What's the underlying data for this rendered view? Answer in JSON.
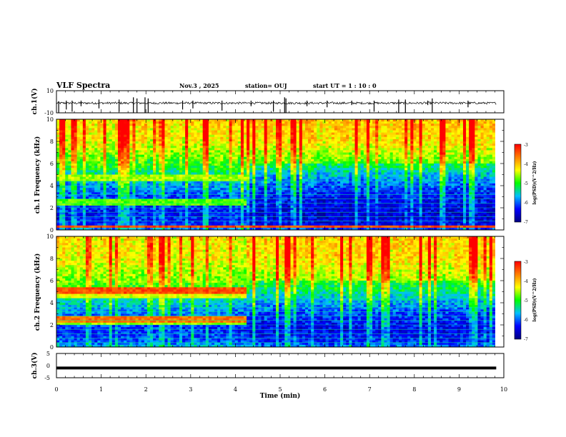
{
  "header": {
    "title": "VLF Spectra",
    "date": "Nov.3  , 2025",
    "station": "station= OUJ",
    "start": "start  UT =   1 : 10 : 0"
  },
  "chart_data": [
    {
      "type": "line",
      "panel": "ch1-waveform",
      "ylabel": "ch.1(V)",
      "ylim": [
        -10,
        10
      ],
      "yticks": [
        "10",
        "-10"
      ],
      "xlim": [
        0,
        10
      ],
      "x_extent": [
        0,
        9.83
      ],
      "baseline": -1.2,
      "noise_amplitude": 1.0,
      "spikes": [
        {
          "x": 0.05,
          "min": -10,
          "max": 0.5
        },
        {
          "x": 0.22,
          "min": -7,
          "max": 1
        },
        {
          "x": 0.35,
          "min": -9,
          "max": 1
        },
        {
          "x": 0.55,
          "min": -4,
          "max": 1
        },
        {
          "x": 0.95,
          "min": -6,
          "max": 2
        },
        {
          "x": 1.4,
          "min": -9,
          "max": 2
        },
        {
          "x": 1.72,
          "min": -10,
          "max": 4
        },
        {
          "x": 1.8,
          "min": -10,
          "max": 3
        },
        {
          "x": 1.98,
          "min": -10,
          "max": 4
        },
        {
          "x": 2.05,
          "min": -10,
          "max": 3
        },
        {
          "x": 2.82,
          "min": -7,
          "max": 1
        },
        {
          "x": 3.05,
          "min": -6,
          "max": 1
        },
        {
          "x": 3.7,
          "min": -8,
          "max": 1
        },
        {
          "x": 4.35,
          "min": -4,
          "max": 1
        },
        {
          "x": 4.85,
          "min": -9,
          "max": 1
        },
        {
          "x": 5.1,
          "min": -10,
          "max": 4
        },
        {
          "x": 5.13,
          "min": -10,
          "max": 3
        },
        {
          "x": 5.6,
          "min": -4,
          "max": 1
        },
        {
          "x": 6.05,
          "min": -5,
          "max": 1
        },
        {
          "x": 6.6,
          "min": -3,
          "max": 1
        },
        {
          "x": 7.1,
          "min": -9,
          "max": 1
        },
        {
          "x": 7.65,
          "min": -10,
          "max": 2
        },
        {
          "x": 7.8,
          "min": -10,
          "max": 2
        },
        {
          "x": 8.3,
          "min": -3,
          "max": 1
        },
        {
          "x": 8.4,
          "min": -10,
          "max": 3
        },
        {
          "x": 9.2,
          "min": -5,
          "max": 1
        }
      ]
    },
    {
      "type": "heatmap",
      "panel": "ch1-spectrogram",
      "ylabel": "ch.1 Frequency  (kHz)",
      "ylim": [
        0,
        10
      ],
      "yticks": [
        "0",
        "2",
        "4",
        "6",
        "8",
        "10"
      ],
      "xlim": [
        0,
        10
      ],
      "x_extent": [
        0,
        9.83
      ],
      "color_scale": {
        "min": -7,
        "max": -3,
        "label": "log(PSD)(V^2/Hz)",
        "ticks": [
          "-3",
          "-4",
          "-5",
          "-6",
          "-7"
        ]
      },
      "background_levels": [
        {
          "f": 0.0,
          "v": -5.8
        },
        {
          "f": 0.5,
          "v": -6.2
        },
        {
          "f": 1.5,
          "v": -6.3
        },
        {
          "f": 3.0,
          "v": -6.1
        },
        {
          "f": 4.5,
          "v": -5.6
        },
        {
          "f": 6.0,
          "v": -4.9
        },
        {
          "f": 8.0,
          "v": -4.3
        },
        {
          "f": 10.0,
          "v": -4.1
        }
      ],
      "bands": [
        {
          "t0": 0,
          "t1": 4.25,
          "f0": 4.5,
          "f1": 4.9,
          "v": -4.6
        },
        {
          "t0": 0,
          "t1": 4.25,
          "f0": 2.3,
          "f1": 2.7,
          "v": -4.8
        },
        {
          "t0": 0,
          "t1": 9.83,
          "f0": 0.3,
          "f1": 0.5,
          "v": -3.4
        }
      ],
      "lines_khz": [
        0.8,
        1.2,
        1.6,
        2.0,
        2.4,
        2.8,
        3.2,
        3.5,
        4.0,
        4.4
      ],
      "burst_density": [
        {
          "t0": 0,
          "t1": 4.25,
          "density": 1.0
        },
        {
          "t0": 4.25,
          "t1": 9.83,
          "density": 1.4
        }
      ]
    },
    {
      "type": "heatmap",
      "panel": "ch2-spectrogram",
      "ylabel": "ch.2 Frequency  (kHz)",
      "ylim": [
        0,
        10
      ],
      "yticks": [
        "0",
        "2",
        "4",
        "6",
        "8",
        "10"
      ],
      "xlim": [
        0,
        10
      ],
      "x_extent": [
        0,
        9.83
      ],
      "color_scale": {
        "min": -7,
        "max": -3,
        "label": "log(PSD)(V^2/Hz)",
        "ticks": [
          "-3",
          "-4",
          "-5",
          "-6",
          "-7"
        ]
      },
      "background_levels": [
        {
          "f": 0.0,
          "v": -5.6
        },
        {
          "f": 0.5,
          "v": -6.0
        },
        {
          "f": 1.5,
          "v": -6.2
        },
        {
          "f": 3.0,
          "v": -5.9
        },
        {
          "f": 4.5,
          "v": -5.3
        },
        {
          "f": 6.0,
          "v": -4.7
        },
        {
          "f": 8.0,
          "v": -4.3
        },
        {
          "f": 10.0,
          "v": -4.2
        }
      ],
      "bands": [
        {
          "t0": 0,
          "t1": 4.25,
          "f0": 4.9,
          "f1": 5.4,
          "v": -3.4
        },
        {
          "t0": 0,
          "t1": 4.25,
          "f0": 4.5,
          "f1": 4.9,
          "v": -4.4
        },
        {
          "t0": 0,
          "t1": 4.25,
          "f0": 2.3,
          "f1": 2.7,
          "v": -3.6
        },
        {
          "t0": 0,
          "t1": 4.25,
          "f0": 2.0,
          "f1": 2.3,
          "v": -4.6
        }
      ],
      "lines_khz": [
        0.4,
        0.8,
        1.2,
        1.6,
        2.0,
        2.4,
        2.8,
        3.2,
        3.6,
        4.0,
        4.4
      ],
      "burst_density": [
        {
          "t0": 0,
          "t1": 4.25,
          "density": 1.0
        },
        {
          "t0": 4.25,
          "t1": 9.83,
          "density": 1.5
        }
      ]
    },
    {
      "type": "line",
      "panel": "ch3-waveform",
      "ylabel": "ch.3(V)",
      "ylim": [
        -5,
        5
      ],
      "yticks": [
        "5",
        "0",
        "-5"
      ],
      "xlim": [
        0,
        10
      ],
      "x_extent": [
        0,
        9.83
      ],
      "value": -1.0,
      "xlabel": "Time  (min)",
      "xticks": [
        "0",
        "1",
        "2",
        "3",
        "4",
        "5",
        "6",
        "7",
        "8",
        "9",
        "10"
      ]
    }
  ],
  "colors": {
    "colormap": [
      "#00007f",
      "#0000ff",
      "#00bfff",
      "#00ff00",
      "#ffff00",
      "#ff7f00",
      "#ff0000"
    ],
    "line_color": "#00ff80",
    "axis": "#000000"
  }
}
